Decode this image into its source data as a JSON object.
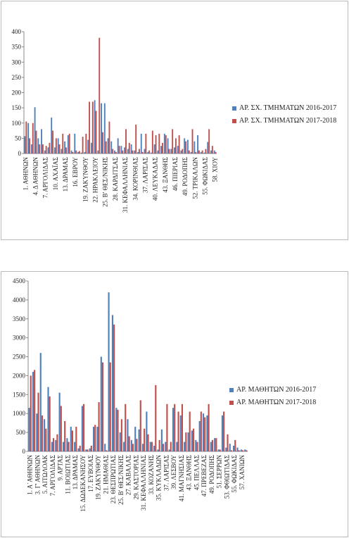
{
  "chart_data": [
    {
      "type": "bar",
      "categories": [
        "1. ΑΘΗΝΩΝ",
        null,
        null,
        "4. Δ ΑΘΗΝΩΝ",
        null,
        null,
        "7. ΑΡΓΟΛΙΔΑΣ",
        null,
        null,
        "10. ΑΧΑΪΑΣ",
        null,
        null,
        "13. ΔΡΑΜΑΣ",
        null,
        null,
        "16. ΕΒΡΟΥ",
        null,
        null,
        "19. ΖΑΚΥΝΘΟΥ",
        null,
        null,
        "22. ΗΡΑΚΛΕΙΟΥ",
        null,
        null,
        "25. Β' ΘΕΣ/ΝΙΚΗΣ",
        null,
        null,
        "28. ΚΑΡΔΙΤΣΑΣ",
        null,
        null,
        "31. ΚΕΦΑΛΛΗΝΙΑΣ",
        null,
        null,
        "34. ΚΟΡΙΝΘΙΑΣ",
        null,
        null,
        "37. ΛΑΡΙΣΑΣ",
        null,
        null,
        "40. ΛΕΥΚΑΔΑΣ",
        null,
        null,
        "43. ΞΑΝΘΗΣ",
        null,
        null,
        "46. ΠΙΕΡΙΑΣ",
        null,
        null,
        "49. ΡΟΔΟΠΗΣ",
        null,
        null,
        "52. ΤΡΙΚΑΛΩΝ",
        null,
        null,
        "55. ΦΩΚΙΔΑΣ",
        null,
        null,
        "58. ΧΙΟΥ"
      ],
      "series": [
        {
          "name": "ΑΡ. ΣΧ. ΤΜΗΜΑΤΩΝ 2016-2017",
          "color": "#4f81bd",
          "values": [
            57,
            100,
            30,
            152,
            50,
            80,
            10,
            20,
            118,
            20,
            50,
            15,
            40,
            60,
            10,
            65,
            5,
            3,
            5,
            45,
            35,
            175,
            10,
            165,
            165,
            50,
            40,
            10,
            50,
            25,
            20,
            15,
            30,
            10,
            5,
            65,
            15,
            5,
            3,
            30,
            10,
            25,
            65,
            50,
            15,
            20,
            25,
            10,
            50,
            45,
            5,
            40,
            60,
            5,
            3,
            38,
            10,
            10
          ]
        },
        {
          "name": "ΑΡ. ΣΧ. ΤΜΗΜΑΤΩΝ 2017-2018",
          "color": "#c0504d",
          "values": [
            105,
            50,
            100,
            75,
            30,
            30,
            25,
            35,
            75,
            50,
            30,
            65,
            20,
            65,
            5,
            10,
            8,
            55,
            65,
            170,
            170,
            140,
            380,
            70,
            40,
            105,
            15,
            5,
            25,
            10,
            80,
            35,
            10,
            95,
            15,
            5,
            65,
            10,
            75,
            60,
            65,
            35,
            60,
            15,
            80,
            50,
            60,
            15,
            40,
            10,
            80,
            5,
            10,
            10,
            15,
            80,
            25,
            5
          ]
        }
      ],
      "ylim": [
        0,
        400
      ],
      "yticks": [
        0,
        50,
        100,
        150,
        200,
        250,
        300,
        350,
        400
      ],
      "grid": false,
      "legend": "right"
    },
    {
      "type": "bar",
      "categories": [
        "1. Α΄ΑΘΗΝΩΝ",
        null,
        "3. Γ' ΑΘΗΝΩΝ",
        null,
        "5. ΑΙΤΩΛΟΑΚ",
        null,
        "7. ΑΡΓΟΛΙΔΑΣ",
        null,
        "9. ΑΡΤΑΣ",
        null,
        "11. ΒΟΙΩΤΙΑΣ",
        null,
        "13. ΔΡΑΜΑΣ",
        null,
        "15. ΔΩΔΕΚΑΝΗΣΟΥ",
        null,
        "17. ΕΥΒΟΙΑΣ",
        null,
        "19. ΖΑΚΥΝΘΟΥ",
        null,
        "21. ΗΜΑΘΙΑΣ",
        null,
        "23. ΘΕΣΠΡΩΤΙΑΣ",
        null,
        "25. Β' ΘΕΣ/ΝΙΚΗΣ",
        null,
        "27. ΚΑΒΑΛΑΣ",
        null,
        "29. ΚΑΣΤΟΡΙΑΣ",
        null,
        "31. ΚΕΦΑΛΛΗΝΙΑΣ",
        null,
        "33. ΚΟΖΑΝΗΣ",
        null,
        "35. ΚΥΚΛΑΔΩΝ",
        null,
        "37. ΛΑΡΙΣΑΣ",
        null,
        "39. ΛΕΣΒΟΥ",
        null,
        "41. ΜΑΓΝΗΣΙΑΣ",
        null,
        "43. ΞΑΝΘΗΣ",
        null,
        "45. ΠΕΛΛΑΣ",
        null,
        "47. ΠΡΕΒΕΖΑΣ",
        null,
        "49. ΡΟΔΟΠΗΣ",
        null,
        "51. ΣΕΡΡΩΝ",
        null,
        "53. ΦΘΙΩΤΙΔΑΣ",
        null,
        "55. ΦΩΚΙΔΑΣ",
        null,
        "57. ΧΑΝΙΩΝ",
        null
      ],
      "series": [
        {
          "name": "ΑΡ. ΜΑΘΗΤΩΝ 2016-2017",
          "color": "#4f81bd",
          "values": [
            1150,
            2100,
            1000,
            2600,
            850,
            1700,
            250,
            300,
            1550,
            250,
            350,
            650,
            250,
            80,
            1200,
            50,
            80,
            650,
            650,
            2500,
            200,
            4200,
            3600,
            1150,
            500,
            250,
            850,
            300,
            650,
            580,
            200,
            1050,
            250,
            150,
            50,
            580,
            250,
            50,
            1150,
            250,
            950,
            250,
            500,
            550,
            300,
            800,
            1000,
            950,
            250,
            350,
            50,
            950,
            100,
            200,
            150,
            100,
            50,
            50
          ]
        },
        {
          "name": "ΑΡ. ΜΑΘΗΤΩΝ 2017-2018",
          "color": "#c0504d",
          "values": [
            2000,
            2150,
            1550,
            950,
            600,
            1450,
            350,
            450,
            1200,
            800,
            250,
            550,
            650,
            150,
            1250,
            50,
            150,
            700,
            1300,
            2350,
            30,
            2350,
            3350,
            1100,
            850,
            1250,
            400,
            200,
            330,
            1350,
            600,
            450,
            250,
            1750,
            300,
            200,
            1250,
            250,
            1250,
            1050,
            1250,
            500,
            1050,
            600,
            250,
            1050,
            900,
            1250,
            300,
            350,
            50,
            1050,
            450,
            30,
            300,
            30,
            30,
            30
          ]
        }
      ],
      "ylim": [
        0,
        4500
      ],
      "yticks": [
        0,
        500,
        1000,
        1500,
        2000,
        2500,
        3000,
        3500,
        4000,
        4500
      ],
      "grid": false,
      "legend": "right"
    }
  ]
}
